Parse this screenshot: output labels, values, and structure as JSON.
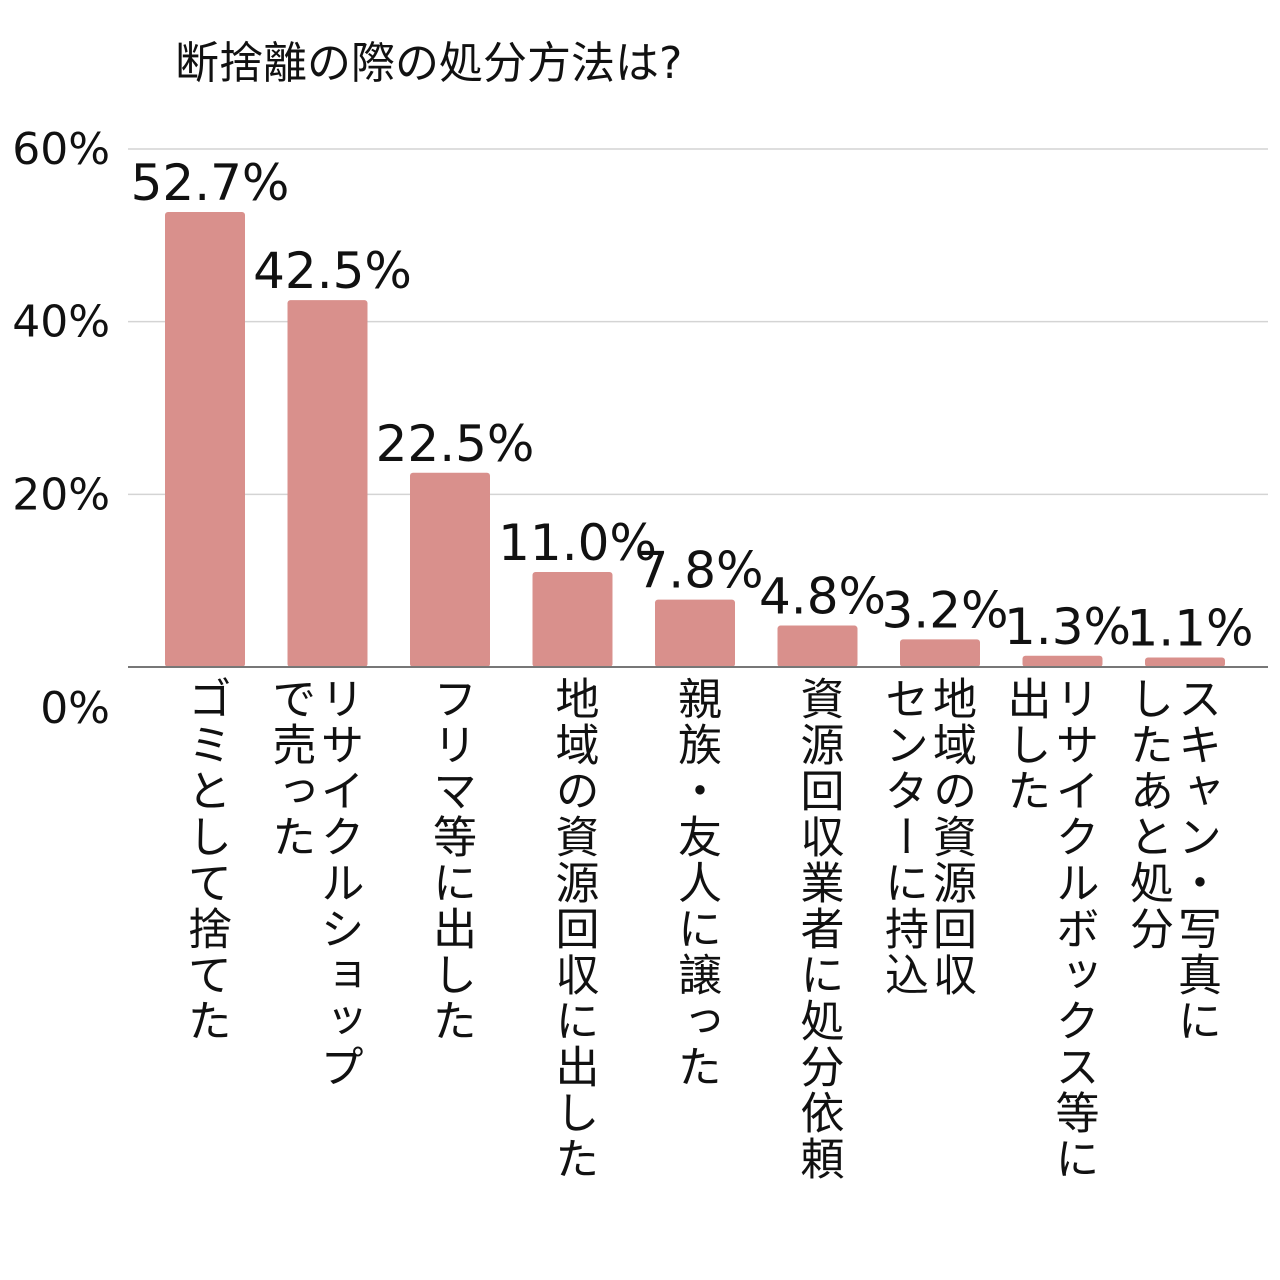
{
  "chart_data": {
    "type": "bar",
    "title": "断捨離の際の処分方法は?",
    "xlabel": "",
    "ylabel": "",
    "ylim": [
      0,
      60
    ],
    "yticks": [
      "0%",
      "20%",
      "40%",
      "60%"
    ],
    "ytick_values": [
      0,
      20,
      40,
      60
    ],
    "grid": true,
    "bar_color": "#d9908c",
    "categories": [
      "ゴミとして捨てた",
      "リサイクルショップ\nで売った",
      "フリマ等に出した",
      "地域の資源回収に出した",
      "親族・友人に譲った",
      "資源回収業者に処分依頼",
      "地域の資源回収\nセンターに持込",
      "リサイクルボックス等に\n出した",
      "スキャン・写真に\nしたあと処分"
    ],
    "values": [
      52.7,
      42.5,
      22.5,
      11.0,
      7.8,
      4.8,
      3.2,
      1.3,
      1.1
    ],
    "value_labels": [
      "52.7%",
      "42.5%",
      "22.5%",
      "11.0%",
      "7.8%",
      "4.8%",
      "3.2%",
      "1.3%",
      "1.1%"
    ]
  }
}
